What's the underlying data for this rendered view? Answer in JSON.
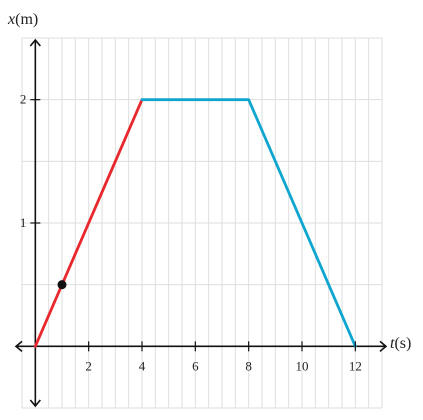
{
  "chart_data": {
    "type": "line",
    "x_axis": {
      "label_var": "t",
      "label_unit": "(s)",
      "range": [
        -0.5,
        13
      ],
      "ticks": [
        2,
        4,
        6,
        8,
        10,
        12
      ],
      "tick_labels": [
        "2",
        "4",
        "6",
        "8",
        "10",
        "12"
      ],
      "grid_step": 0.5
    },
    "y_axis": {
      "label_var": "x",
      "label_unit": "(m)",
      "range": [
        -0.5,
        2.5
      ],
      "ticks": [
        1,
        2
      ],
      "tick_labels": [
        "1",
        "2"
      ],
      "grid_step": 0.5
    },
    "grid": true,
    "segments": [
      {
        "x": [
          0,
          4
        ],
        "y": [
          0,
          2
        ],
        "color": "#e8282d"
      },
      {
        "x": [
          4,
          8,
          12
        ],
        "y": [
          2,
          2,
          0
        ],
        "color": "#0ea5cf"
      }
    ],
    "points": [
      {
        "x": 1,
        "y": 0.5,
        "color": "#111111"
      }
    ]
  }
}
